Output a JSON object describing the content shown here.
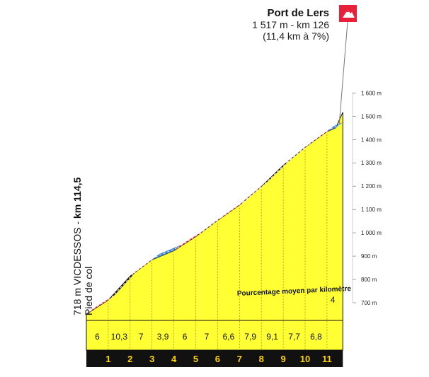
{
  "summit": {
    "name": "Port de Lers",
    "detail": "1 517 m - km 126",
    "climb": "(11,4 km à 7%)"
  },
  "start": {
    "line1_normal": "718 m VICDESSOS - ",
    "line1_bold": "km 114,5",
    "line2": "Pied de col"
  },
  "note": "Pourcentage moyen par kilomètre",
  "colors": {
    "fill": "#ffff33",
    "road": "#e8213a",
    "steep": "#111111",
    "flat": "#3b82d8",
    "base": "#111111",
    "flag": "#e8213a"
  },
  "icons": {
    "summit_flag": "mountain-flag-icon"
  },
  "chart_data": {
    "type": "area",
    "title": "",
    "xlabel": "",
    "ylabel": "",
    "ylim": [
      600,
      1600
    ],
    "yticks": [
      700,
      800,
      900,
      1000,
      1100,
      1200,
      1300,
      1400,
      1500,
      1600
    ],
    "ytick_labels": [
      "700 m",
      "800 m",
      "900 m",
      "1 000 m",
      "1 100 m",
      "1 200 m",
      "1 300 m",
      "1 400 m",
      "1 500 m",
      "1 600 m"
    ],
    "x_km": [
      0,
      1,
      2,
      3,
      4,
      5,
      6,
      7,
      8,
      9,
      10,
      11,
      11.4
    ],
    "altitude_m": [
      718,
      778,
      881,
      951,
      990,
      1050,
      1120,
      1186,
      1265,
      1356,
      1433,
      1501,
      1517
    ],
    "km_markers": [
      "1",
      "2",
      "3",
      "4",
      "5",
      "6",
      "7",
      "8",
      "9",
      "10",
      "11"
    ],
    "segment_gradients": [
      "6",
      "10,3",
      "7",
      "3,9",
      "6",
      "7",
      "6,6",
      "7,9",
      "9,1",
      "7,7",
      "6,8",
      "4"
    ]
  }
}
